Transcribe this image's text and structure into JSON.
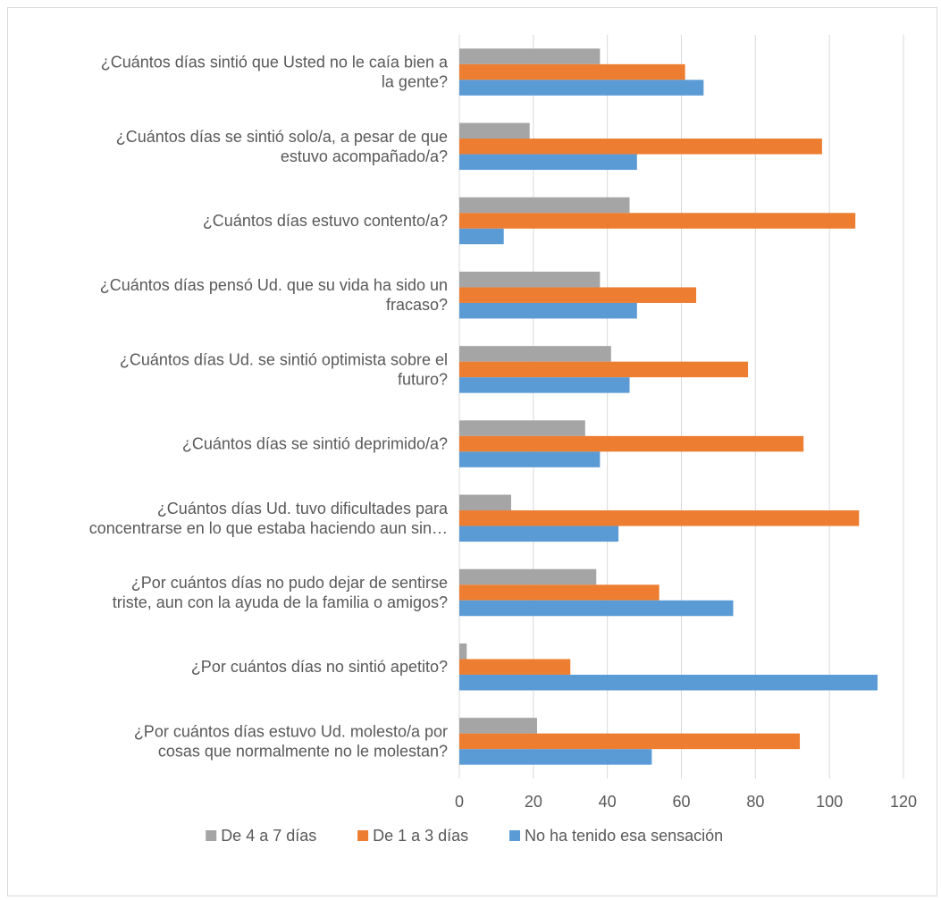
{
  "chart_data": {
    "type": "bar",
    "orientation": "horizontal",
    "title": "",
    "xlabel": "",
    "ylabel": "",
    "xlim": [
      0,
      120
    ],
    "x_ticks": [
      0,
      20,
      40,
      60,
      80,
      100,
      120
    ],
    "grid": true,
    "legend_position": "bottom",
    "categories": [
      [
        "¿Cuántos días sintió que Usted no le caía bien a",
        "la gente?"
      ],
      [
        "¿Cuántos días se sintió solo/a, a pesar de que",
        "estuvo acompañado/a?"
      ],
      [
        "¿Cuántos días estuvo contento/a?"
      ],
      [
        "¿Cuántos días pensó Ud. que su vida ha sido un",
        "fracaso?"
      ],
      [
        "¿Cuántos días Ud. se sintió optimista sobre el",
        "futuro?"
      ],
      [
        "¿Cuántos días se sintió deprimido/a?"
      ],
      [
        "¿Cuántos días Ud. tuvo dificultades para",
        "concentrarse en lo que estaba haciendo aun sin…"
      ],
      [
        "¿Por cuántos días no pudo dejar de sentirse",
        "triste, aun con la ayuda de la familia o amigos?"
      ],
      [
        "¿Por cuántos días no sintió apetito?"
      ],
      [
        "¿Por cuántos días estuvo Ud. molesto/a por",
        "cosas que normalmente no le molestan?"
      ]
    ],
    "series": [
      {
        "name": "De 4 a 7 días",
        "color": "#a5a5a5",
        "values": [
          38,
          19,
          46,
          38,
          41,
          34,
          14,
          37,
          2,
          21
        ]
      },
      {
        "name": "De 1 a 3 días",
        "color": "#ed7d31",
        "values": [
          61,
          98,
          107,
          64,
          78,
          93,
          108,
          54,
          30,
          92
        ]
      },
      {
        "name": "No ha tenido esa sensación",
        "color": "#5b9bd5",
        "values": [
          66,
          48,
          12,
          48,
          46,
          38,
          43,
          74,
          113,
          52
        ]
      }
    ]
  }
}
